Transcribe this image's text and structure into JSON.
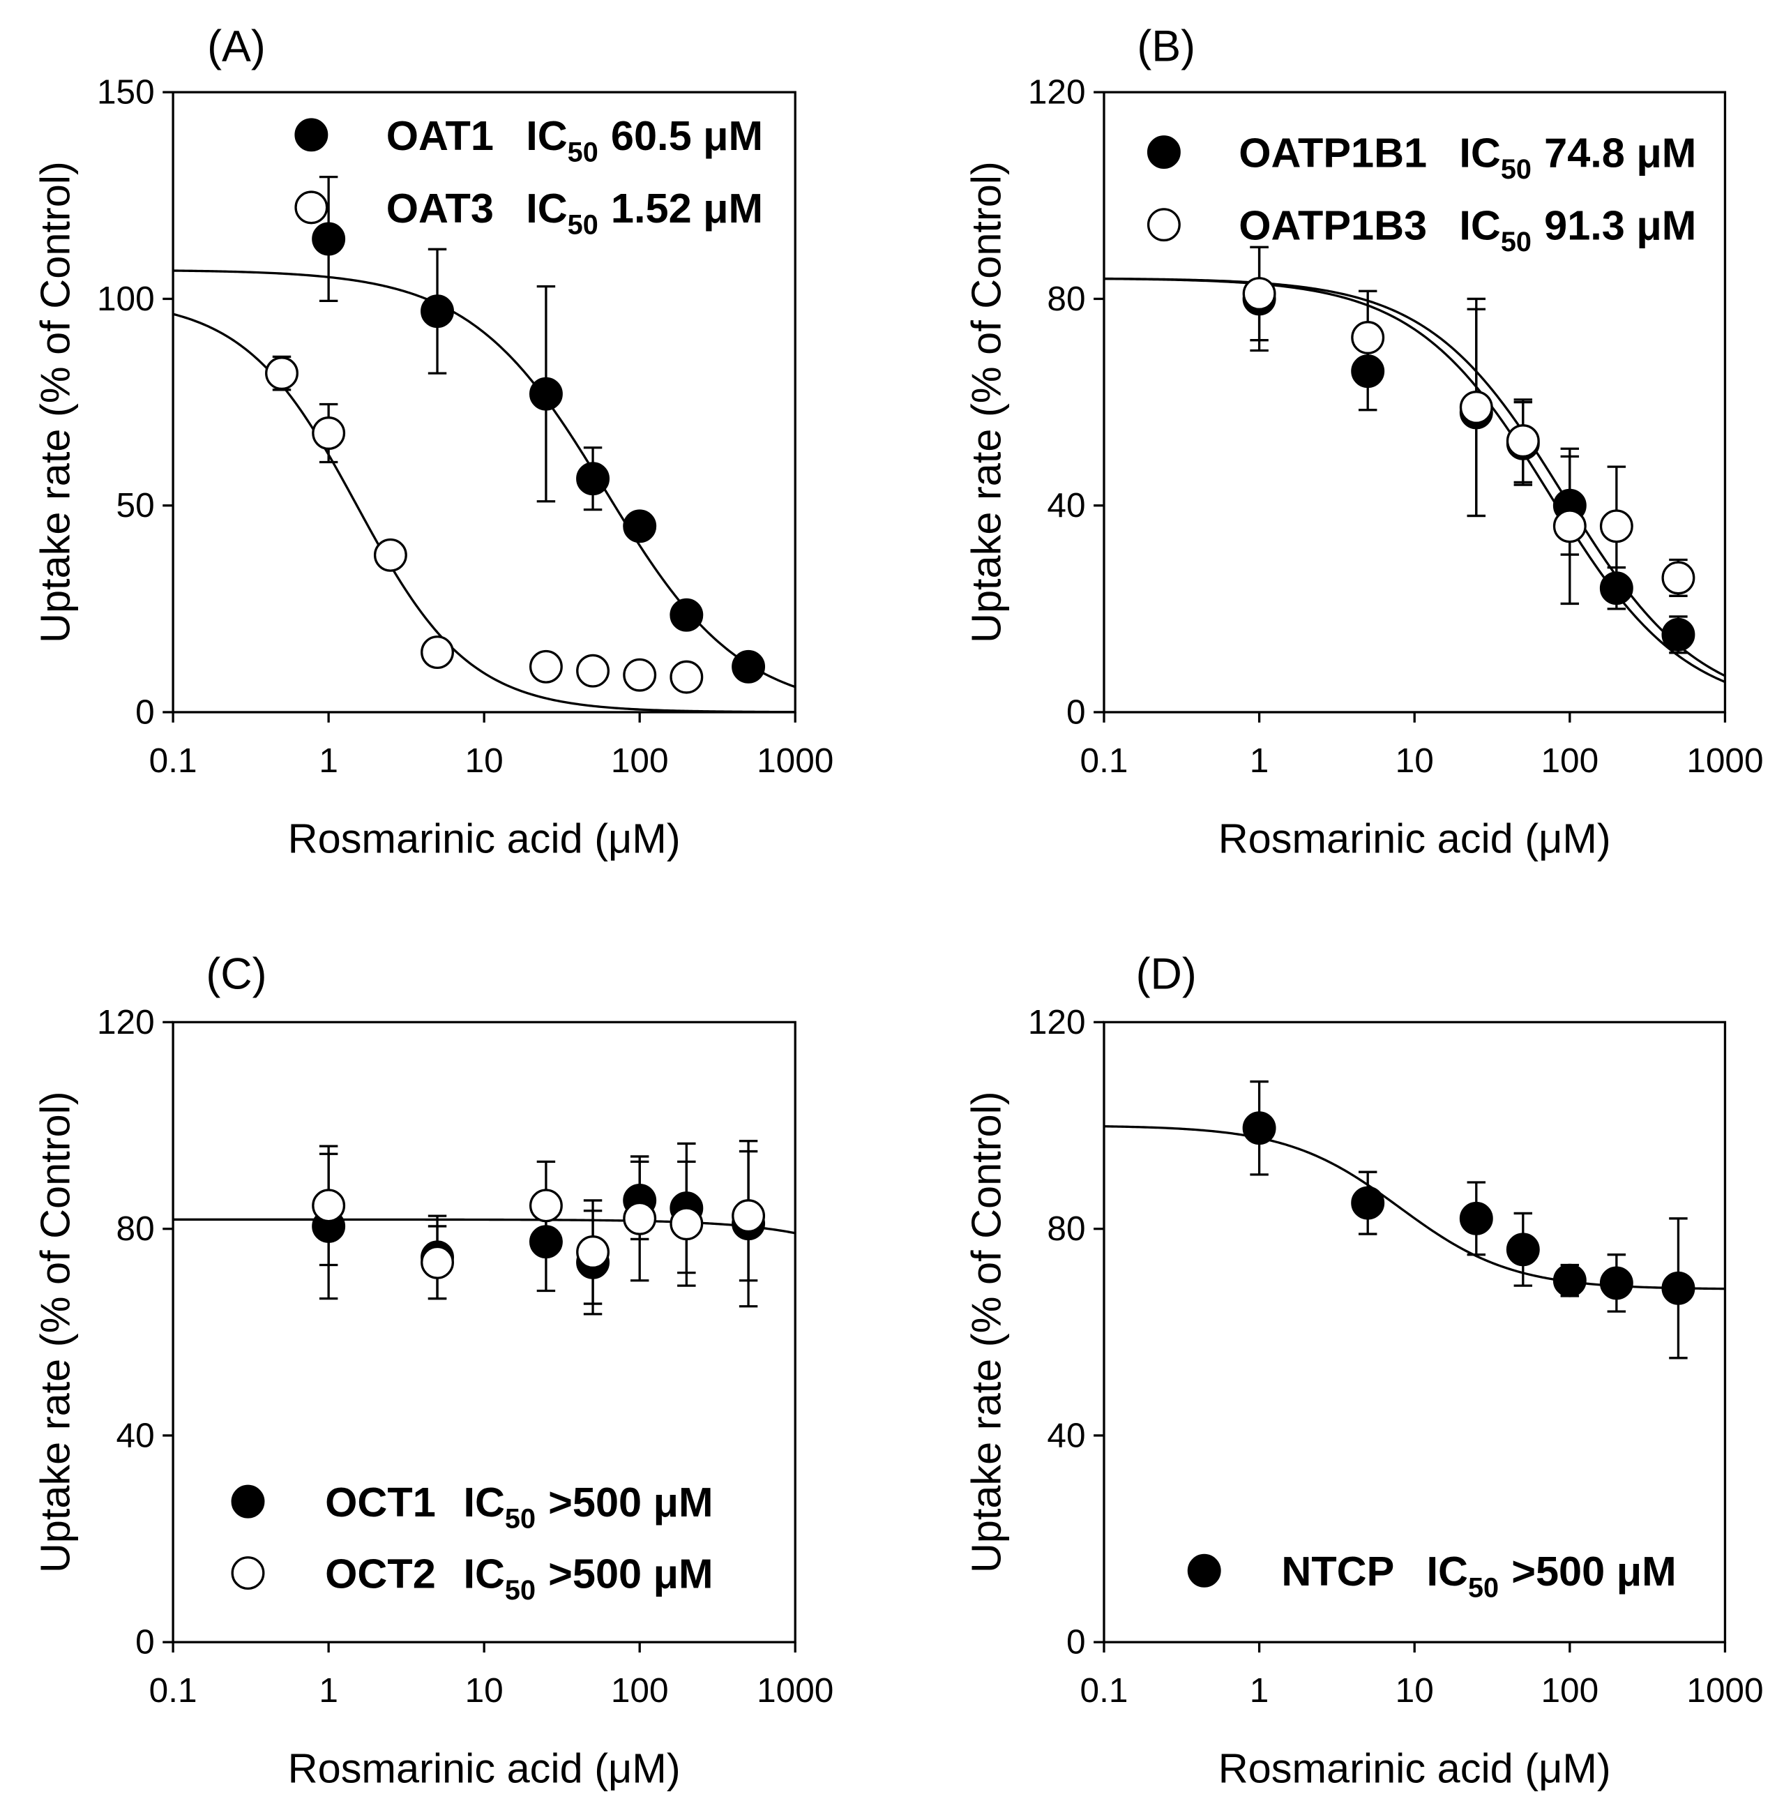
{
  "figure": {
    "ic_label": "IC",
    "ic_subscript": "50"
  },
  "colors": {
    "ink": "#000000",
    "open_marker_fill": "#ffffff",
    "background": "#ffffff"
  },
  "chart_data": [
    {
      "panel_label": "(A)",
      "type": "scatter",
      "xlabel": "Rosmarinic acid (μM)",
      "ylabel": "Uptake rate (% of Control)",
      "xscale": "log",
      "xlim": [
        0.1,
        1000
      ],
      "ylim": [
        0,
        150
      ],
      "xticks": [
        0.1,
        1,
        10,
        100,
        1000
      ],
      "xtick_labels": [
        "0.1",
        "1",
        "10",
        "100",
        "1000"
      ],
      "yticks": [
        0,
        50,
        100,
        150
      ],
      "ytick_labels": [
        "0",
        "50",
        "100",
        "150"
      ],
      "grid": false,
      "legend_position": "top-right",
      "series": [
        {
          "name": "OAT1",
          "marker": "filled",
          "ic50_label": "60.5 μM",
          "x": [
            1,
            5,
            25,
            50,
            100,
            200,
            500
          ],
          "y": [
            114.5,
            97,
            77,
            56.5,
            45,
            23.5,
            11
          ],
          "error": [
            15,
            15,
            26,
            7.5,
            2,
            2,
            1.5
          ],
          "fit": {
            "top": 107,
            "bottom": 0,
            "ic50": 60.5,
            "hill": 1
          }
        },
        {
          "name": "OAT3",
          "marker": "open",
          "ic50_label": "1.52 μM",
          "x": [
            0.5,
            1,
            2.5,
            5,
            25,
            50,
            100,
            200
          ],
          "y": [
            82,
            67.5,
            38,
            14.5,
            11,
            10,
            9,
            8.5
          ],
          "error": [
            4,
            7,
            1.5,
            1.5,
            1,
            1,
            1,
            1
          ],
          "fit": {
            "top": 100,
            "bottom": 0,
            "ic50": 1.52,
            "hill": 1.2
          }
        }
      ]
    },
    {
      "panel_label": "(B)",
      "type": "scatter",
      "xlabel": "Rosmarinic acid (μM)",
      "ylabel": "Uptake rate (% of Control)",
      "xscale": "log",
      "xlim": [
        0.1,
        1000
      ],
      "ylim": [
        0,
        120
      ],
      "xticks": [
        0.1,
        1,
        10,
        100,
        1000
      ],
      "xtick_labels": [
        "0.1",
        "1",
        "10",
        "100",
        "1000"
      ],
      "yticks": [
        0,
        40,
        80,
        120
      ],
      "ytick_labels": [
        "0",
        "40",
        "80",
        "120"
      ],
      "grid": false,
      "legend_position": "top",
      "series": [
        {
          "name": "OATP1B1",
          "marker": "filled",
          "ic50_label": "74.8 μM",
          "x": [
            1,
            5,
            25,
            50,
            100,
            200,
            500
          ],
          "y": [
            80,
            66,
            58,
            52,
            40,
            24,
            15
          ],
          "error": [
            10,
            7.5,
            20,
            8,
            9.5,
            4,
            3.5
          ],
          "fit": {
            "top": 84,
            "bottom": 0,
            "ic50": 74.8,
            "hill": 1
          }
        },
        {
          "name": "OATP1B3",
          "marker": "open",
          "ic50_label": "91.3 μM",
          "x": [
            1,
            5,
            25,
            50,
            100,
            200,
            500
          ],
          "y": [
            81,
            72.5,
            59,
            52.5,
            36,
            36,
            26
          ],
          "error": [
            9,
            9,
            21,
            8,
            15,
            11.5,
            3.5
          ],
          "fit": {
            "top": 84,
            "bottom": 0,
            "ic50": 91.3,
            "hill": 1
          }
        }
      ]
    },
    {
      "panel_label": "(C)",
      "type": "scatter",
      "xlabel": "Rosmarinic acid (μM)",
      "ylabel": "Uptake rate (% of Control)",
      "xscale": "log",
      "xlim": [
        0.1,
        1000
      ],
      "ylim": [
        0,
        120
      ],
      "xticks": [
        0.1,
        1,
        10,
        100,
        1000
      ],
      "xtick_labels": [
        "0.1",
        "1",
        "10",
        "100",
        "1000"
      ],
      "yticks": [
        0,
        40,
        80,
        120
      ],
      "ytick_labels": [
        "0",
        "40",
        "80",
        "120"
      ],
      "grid": false,
      "legend_position": "bottom-left",
      "series": [
        {
          "name": "OCT1",
          "marker": "filled",
          "ic50_label": ">500 μM",
          "x": [
            1,
            5,
            25,
            50,
            100,
            200,
            500
          ],
          "y": [
            80.5,
            74.5,
            77.5,
            73.5,
            85.5,
            84,
            81
          ],
          "error": [
            14,
            8,
            9.5,
            10,
            7.5,
            12.5,
            16
          ],
          "fit": {
            "top": 81.8,
            "bottom": 0,
            "ic50": 30000,
            "hill": 1
          }
        },
        {
          "name": "OCT2",
          "marker": "open",
          "ic50_label": ">500 μM",
          "x": [
            1,
            5,
            25,
            50,
            100,
            200,
            500
          ],
          "y": [
            84.5,
            73.5,
            84.5,
            75.5,
            82,
            81,
            82.5
          ],
          "error": [
            11.5,
            7,
            8.5,
            10,
            12,
            12,
            12.5
          ]
        }
      ]
    },
    {
      "panel_label": "(D)",
      "type": "scatter",
      "xlabel": "Rosmarinic acid (μM)",
      "ylabel": "Uptake rate (% of Control)",
      "xscale": "log",
      "xlim": [
        0.1,
        1000
      ],
      "ylim": [
        0,
        120
      ],
      "xticks": [
        0.1,
        1,
        10,
        100,
        1000
      ],
      "xtick_labels": [
        "0.1",
        "1",
        "10",
        "100",
        "1000"
      ],
      "yticks": [
        0,
        40,
        80,
        120
      ],
      "ytick_labels": [
        "0",
        "40",
        "80",
        "120"
      ],
      "grid": false,
      "legend_position": "bottom",
      "series": [
        {
          "name": "NTCP",
          "marker": "filled",
          "ic50_label": ">500 μM",
          "x": [
            1,
            5,
            25,
            50,
            100,
            200,
            500
          ],
          "y": [
            99.5,
            85,
            82,
            76,
            70,
            69.5,
            68.5
          ],
          "error": [
            9,
            6,
            7,
            7,
            3,
            5.5,
            13.5
          ],
          "fit": {
            "top": 100,
            "bottom": 68.3,
            "ic50": 8,
            "hill": 1.2
          }
        }
      ]
    }
  ]
}
